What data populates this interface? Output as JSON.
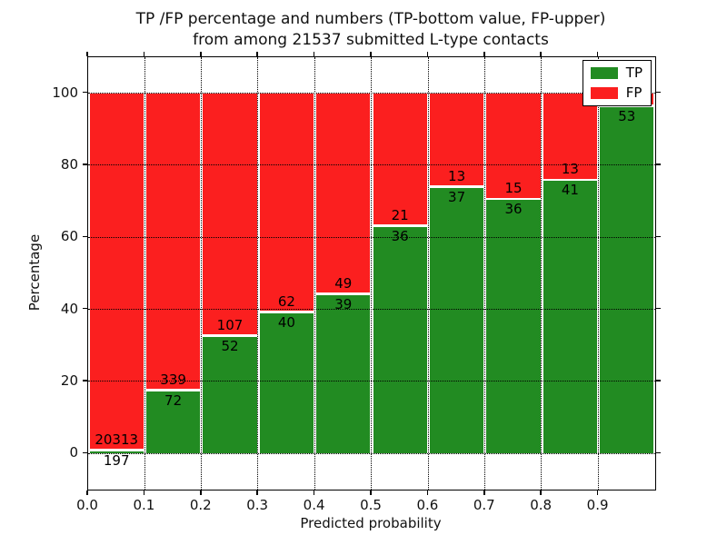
{
  "figure": {
    "title_line1": "TP /FP percentage and numbers (TP-bottom value, FP-upper)",
    "title_line2": "from among 21537 submitted L-type contacts",
    "xlabel": "Predicted probability",
    "ylabel": "Percentage"
  },
  "legend": {
    "items": [
      {
        "label": "TP",
        "color": "#228b22"
      },
      {
        "label": "FP",
        "color": "#fb1f1f"
      }
    ]
  },
  "colors": {
    "tp": "#228b22",
    "fp": "#fb1f1f",
    "grid": "#000000",
    "background": "#ffffff",
    "bar_edge": "#ffffff"
  },
  "chart_data": {
    "type": "bar",
    "subtype": "stacked-percentage-histogram",
    "title": "TP /FP percentage and numbers (TP-bottom value, FP-upper) from among 21537 submitted L-type contacts",
    "total_contacts": 21537,
    "xlabel": "Predicted probability",
    "ylabel": "Percentage",
    "xlim": [
      0.0,
      1.0
    ],
    "ylim": [
      -10,
      110
    ],
    "x_tick_labels": [
      "0.0",
      "0.1",
      "0.2",
      "0.3",
      "0.4",
      "0.5",
      "0.6",
      "0.7",
      "0.8",
      "0.9"
    ],
    "y_ticks": [
      0,
      20,
      40,
      60,
      80,
      100
    ],
    "grid": true,
    "grid_style": "dotted",
    "legend_position": "upper right",
    "series": [
      {
        "name": "TP",
        "color": "#228b22",
        "position": "bottom"
      },
      {
        "name": "FP",
        "color": "#fb1f1f",
        "position": "top"
      }
    ],
    "bars": [
      {
        "x0": 0.0,
        "x1": 0.1,
        "tp_count": 197,
        "fp_count": 20313,
        "tp_pct": 0.96
      },
      {
        "x0": 0.1,
        "x1": 0.2,
        "tp_count": 72,
        "fp_count": 339,
        "tp_pct": 17.5
      },
      {
        "x0": 0.2,
        "x1": 0.3,
        "tp_count": 52,
        "fp_count": 107,
        "tp_pct": 32.7
      },
      {
        "x0": 0.3,
        "x1": 0.4,
        "tp_count": 40,
        "fp_count": 62,
        "tp_pct": 39.2
      },
      {
        "x0": 0.4,
        "x1": 0.5,
        "tp_count": 39,
        "fp_count": 49,
        "tp_pct": 44.3
      },
      {
        "x0": 0.5,
        "x1": 0.6,
        "tp_count": 36,
        "fp_count": 21,
        "tp_pct": 63.2
      },
      {
        "x0": 0.6,
        "x1": 0.7,
        "tp_count": 37,
        "fp_count": 13,
        "tp_pct": 74.0
      },
      {
        "x0": 0.7,
        "x1": 0.8,
        "tp_count": 36,
        "fp_count": 15,
        "tp_pct": 70.6
      },
      {
        "x0": 0.8,
        "x1": 0.9,
        "tp_count": 41,
        "fp_count": 13,
        "tp_pct": 75.9
      },
      {
        "x0": 0.9,
        "x1": 1.0,
        "tp_count": 53,
        "fp_count": null,
        "tp_pct": 96.4,
        "fp_label_hidden_behind_legend": true
      }
    ]
  }
}
